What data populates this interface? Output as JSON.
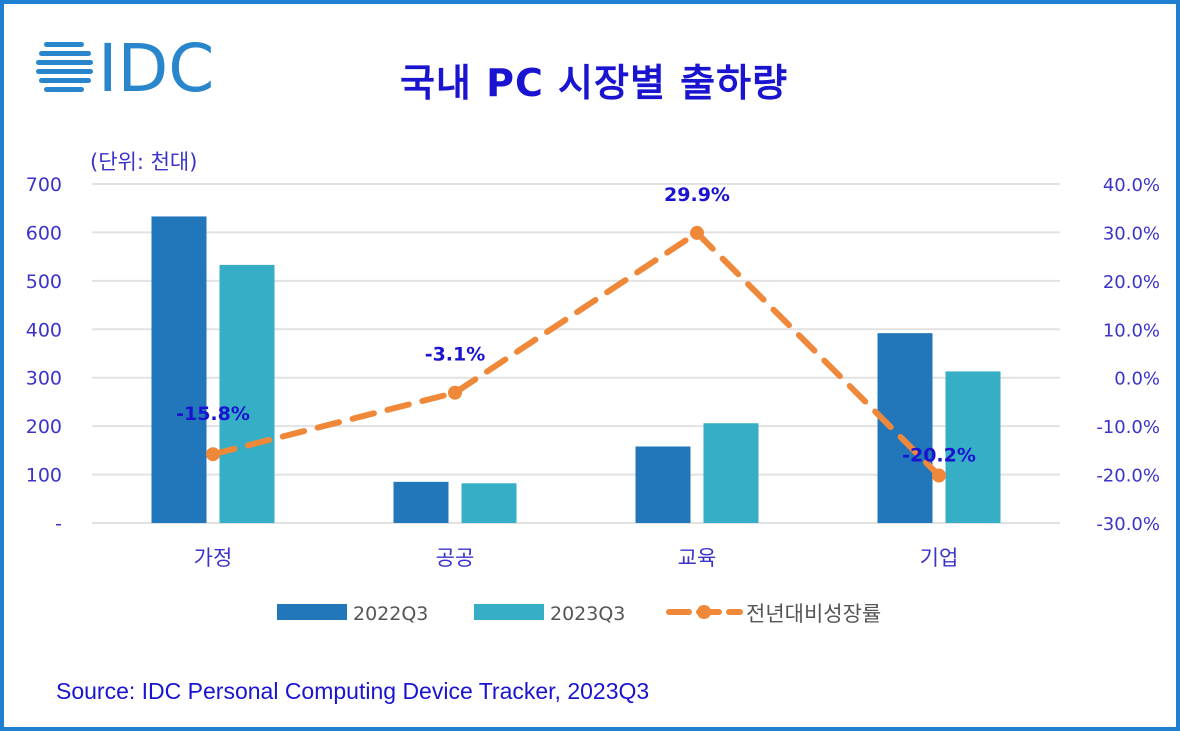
{
  "header": {
    "logo_text": "IDC",
    "title": "국내 PC 시장별 출하량",
    "unit_label": "(단위: 천대)"
  },
  "footer": {
    "source": "Source: IDC Personal Computing Device Tracker, 2023Q3"
  },
  "colors": {
    "series_2022Q3": "#2277bb",
    "series_2023Q3": "#35aec6",
    "growth_line": "#f0883a",
    "text_blue": "#1a14d0",
    "frame": "#1f7fd0",
    "grid": "#e2e2e2",
    "legend_text": "#555555"
  },
  "chart_data": {
    "type": "bar",
    "title": "국내 PC 시장별 출하량",
    "xlabel": "",
    "ylabel": "(단위: 천대)",
    "y2label": "전년대비성장률",
    "categories": [
      "가정",
      "공공",
      "교육",
      "기업"
    ],
    "series": [
      {
        "name": "2022Q3",
        "type": "bar",
        "axis": "left",
        "values": [
          633,
          85,
          158,
          392
        ]
      },
      {
        "name": "2023Q3",
        "type": "bar",
        "axis": "left",
        "values": [
          533,
          82,
          206,
          313
        ]
      },
      {
        "name": "전년대비성장률",
        "type": "line",
        "axis": "right",
        "style": "dashed-with-markers",
        "values": [
          -15.8,
          -3.1,
          29.9,
          -20.2
        ],
        "labels": [
          "-15.8%",
          "-3.1%",
          "29.9%",
          "-20.2%"
        ]
      }
    ],
    "ylim": [
      0,
      700
    ],
    "y_ticks": [
      "-",
      "100",
      "200",
      "300",
      "400",
      "500",
      "600",
      "700"
    ],
    "y2lim": [
      -30.0,
      40.0
    ],
    "y2_ticks": [
      "-30.0%",
      "-20.0%",
      "-10.0%",
      "0.0%",
      "10.0%",
      "20.0%",
      "30.0%",
      "40.0%"
    ],
    "grid": true,
    "legend_position": "bottom",
    "legend": [
      "2022Q3",
      "2023Q3",
      "전년대비성장률"
    ]
  }
}
